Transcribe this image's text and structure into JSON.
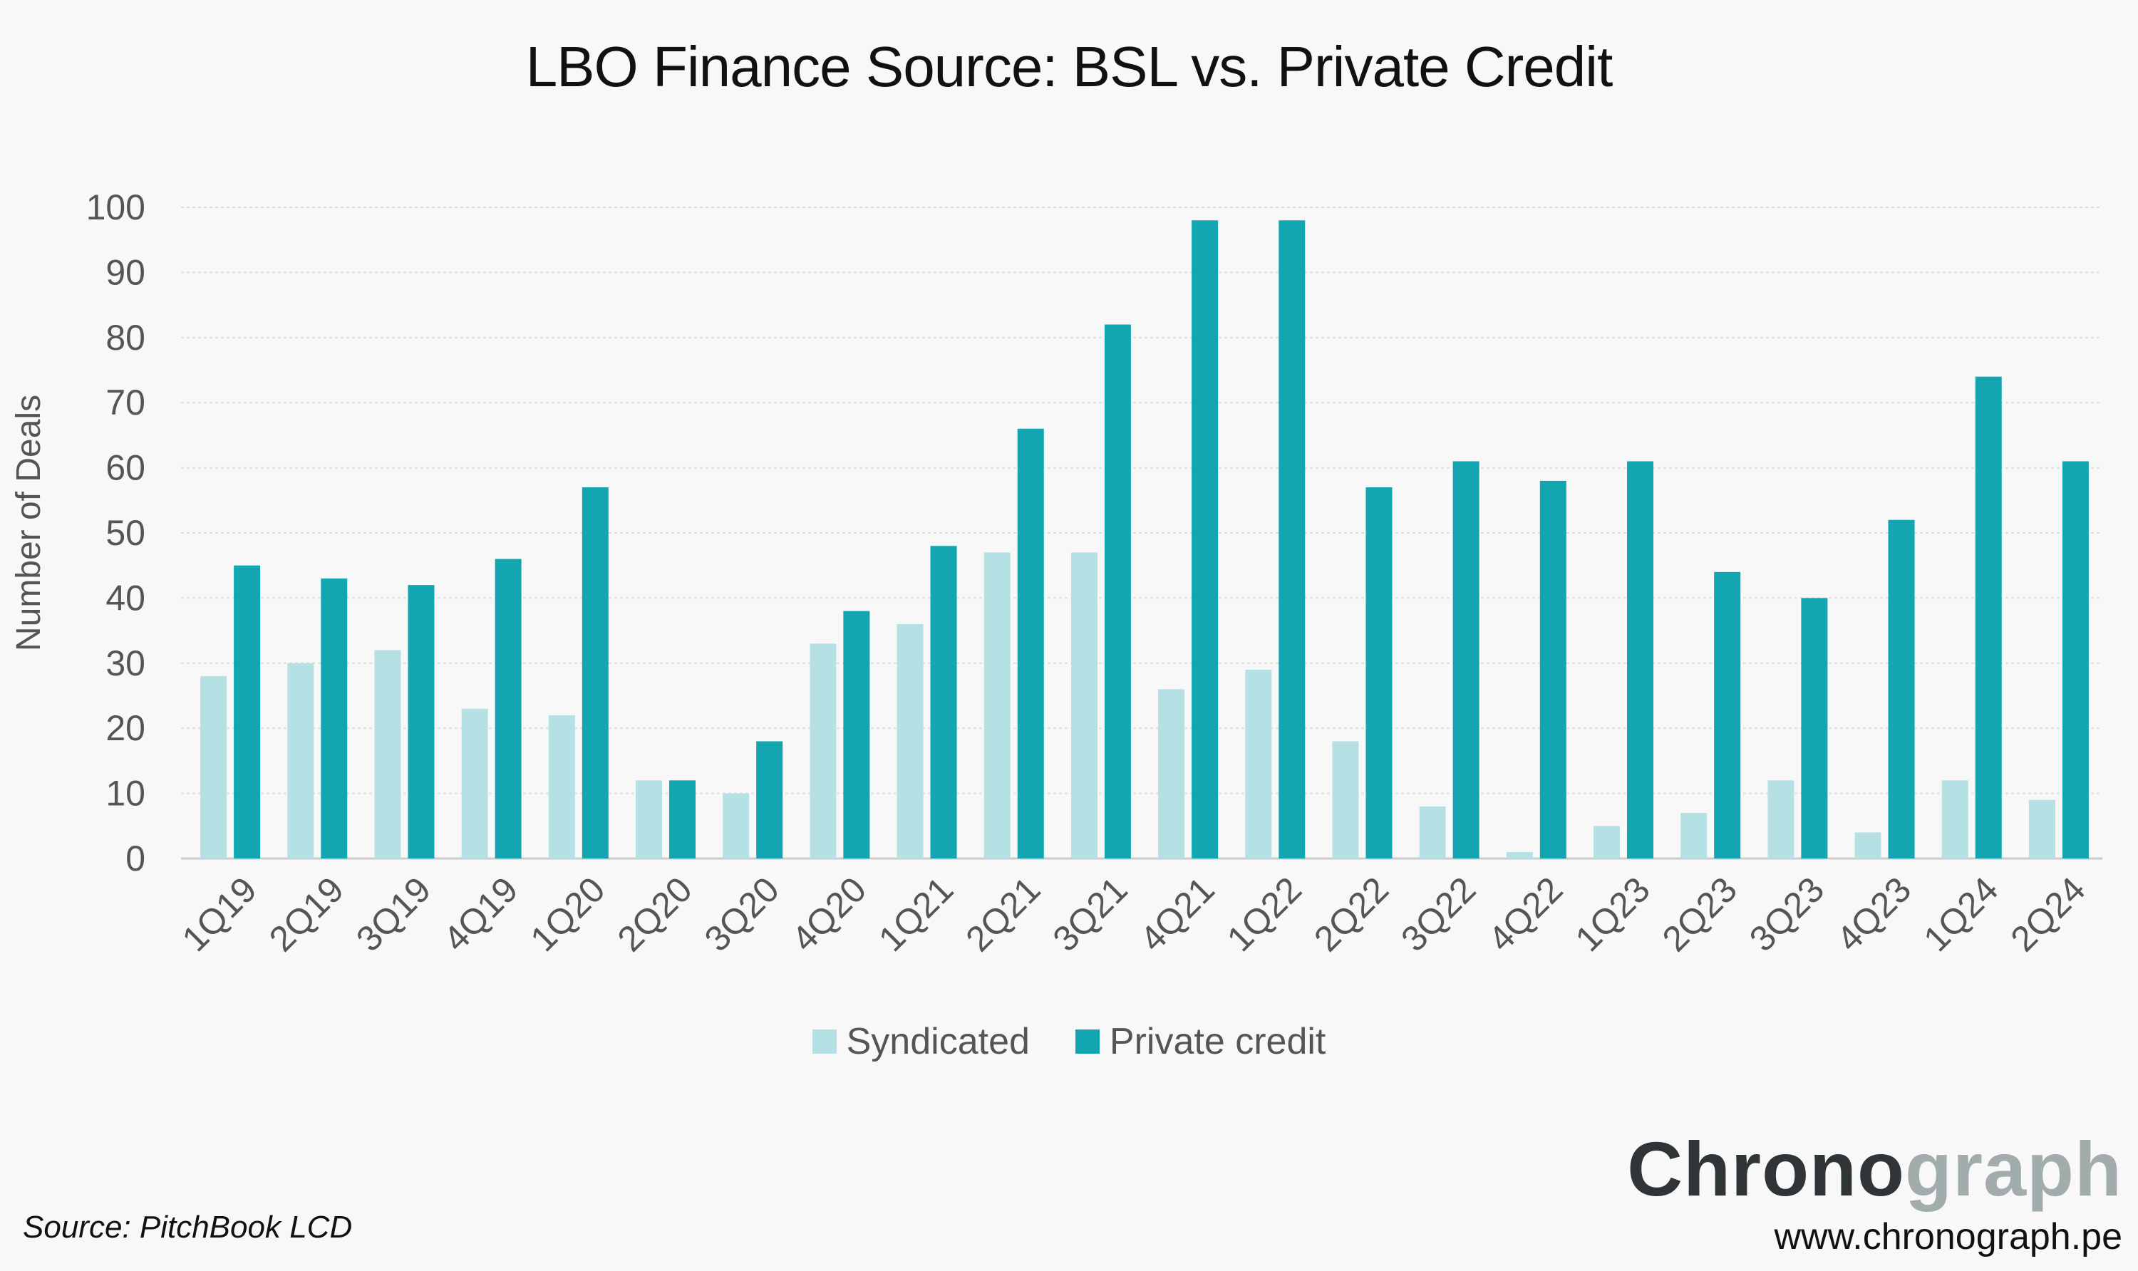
{
  "chart_data": {
    "type": "bar",
    "title": "LBO Finance Source: BSL vs. Private Credit",
    "xlabel": "",
    "ylabel": "Number of Deals",
    "ylim": [
      0,
      100
    ],
    "yticks": [
      0,
      10,
      20,
      30,
      40,
      50,
      60,
      70,
      80,
      90,
      100
    ],
    "grid": true,
    "legend_position": "bottom-center",
    "categories": [
      "1Q19",
      "2Q19",
      "3Q19",
      "4Q19",
      "1Q20",
      "2Q20",
      "3Q20",
      "4Q20",
      "1Q21",
      "2Q21",
      "3Q21",
      "4Q21",
      "1Q22",
      "2Q22",
      "3Q22",
      "4Q22",
      "1Q23",
      "2Q23",
      "3Q23",
      "4Q23",
      "1Q24",
      "2Q24"
    ],
    "series": [
      {
        "name": "Syndicated",
        "color": "#b5e1e4",
        "values": [
          28,
          30,
          32,
          23,
          22,
          12,
          10,
          33,
          36,
          47,
          47,
          26,
          29,
          18,
          8,
          1,
          5,
          7,
          12,
          4,
          12,
          9
        ]
      },
      {
        "name": "Private credit",
        "color": "#13a6b1",
        "values": [
          45,
          43,
          42,
          46,
          57,
          12,
          18,
          38,
          48,
          66,
          82,
          98,
          98,
          57,
          61,
          58,
          61,
          44,
          40,
          52,
          74,
          61
        ]
      }
    ]
  },
  "footer": {
    "source": "Source: PitchBook LCD",
    "brand_dark": "Chrono",
    "brand_light": "graph",
    "website": "www.chronograph.pe"
  },
  "colors": {
    "gridline": "#dddddd",
    "axis": "#cccccc",
    "brand_dark": "#2f3436",
    "brand_light": "#a3acad"
  }
}
